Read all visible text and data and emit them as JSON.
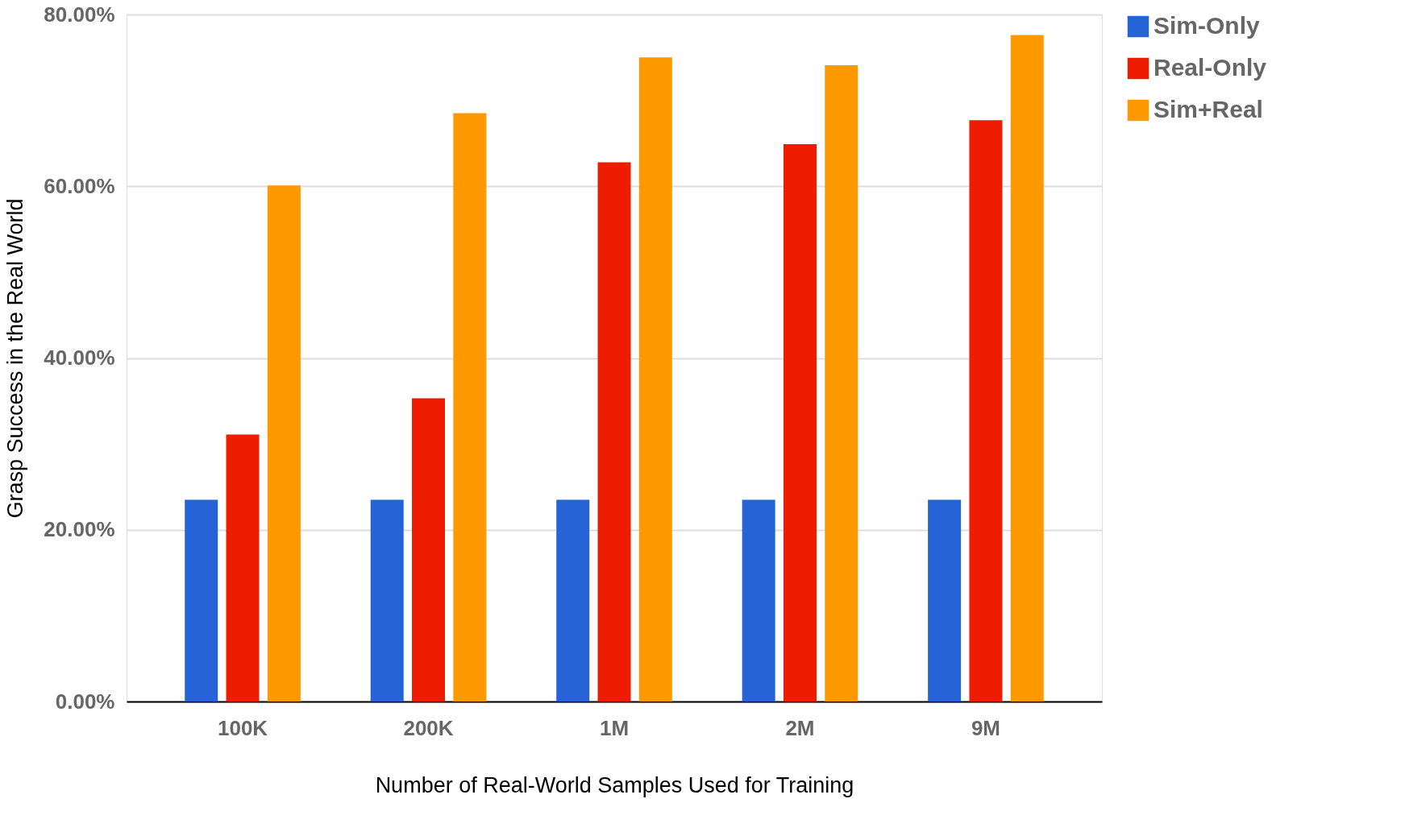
{
  "chart_data": {
    "type": "bar",
    "xlabel": "Number of Real-World Samples Used for Training",
    "ylabel": "Grasp Success in the Real World",
    "categories": [
      "100K",
      "200K",
      "1M",
      "2M",
      "9M"
    ],
    "series": [
      {
        "name": "Sim-Only",
        "color": "#2563d6",
        "values": [
          23.5,
          23.5,
          23.5,
          23.5,
          23.5
        ]
      },
      {
        "name": "Real-Only",
        "color": "#ee1c00",
        "values": [
          31.1,
          35.3,
          62.8,
          64.9,
          67.7
        ]
      },
      {
        "name": "Sim+Real",
        "color": "#ff9900",
        "values": [
          60.1,
          68.5,
          75.0,
          74.1,
          77.6
        ]
      }
    ],
    "ylim": [
      0,
      80
    ],
    "yticks": [
      {
        "value": 0,
        "label": "0.00%"
      },
      {
        "value": 20,
        "label": "20.00%"
      },
      {
        "value": 40,
        "label": "40.00%"
      },
      {
        "value": 60,
        "label": "60.00%"
      },
      {
        "value": 80,
        "label": "80.00%"
      }
    ],
    "grid": "y",
    "legend": "top right"
  }
}
